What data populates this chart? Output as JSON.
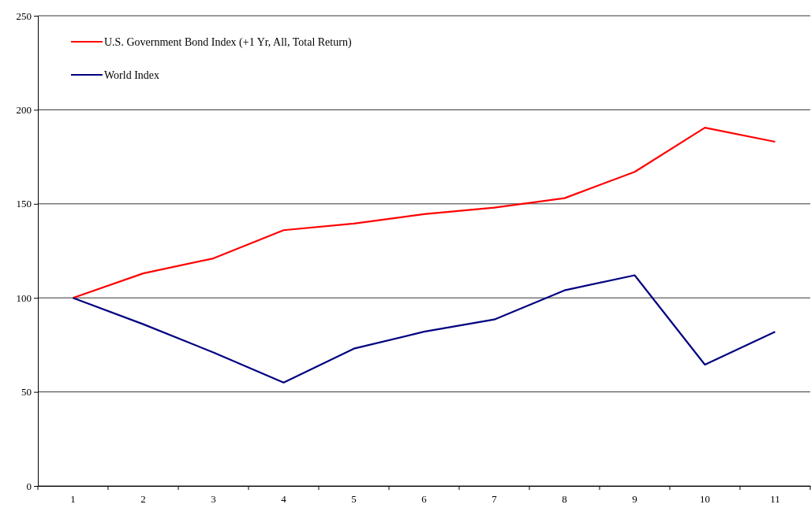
{
  "chart_data": {
    "type": "line",
    "categories": [
      "1",
      "2",
      "3",
      "4",
      "5",
      "6",
      "7",
      "8",
      "9",
      "10",
      "11"
    ],
    "series": [
      {
        "name": "U.S. Government Bond Index (+1 Yr, All, Total Return)",
        "color": "#ff0000",
        "values": [
          100,
          113,
          121,
          136,
          139.5,
          144.5,
          148,
          153,
          167,
          190.5,
          183
        ]
      },
      {
        "name": "World Index",
        "color": "#000080",
        "values": [
          100,
          86,
          71,
          55,
          73,
          82,
          88.5,
          104,
          112,
          64.5,
          82
        ]
      }
    ],
    "ylim": [
      0,
      250
    ],
    "yticks": [
      0,
      50,
      100,
      150,
      200,
      250
    ],
    "grid": "y",
    "legend": "top left",
    "marker": "none",
    "line_style": "solid"
  }
}
